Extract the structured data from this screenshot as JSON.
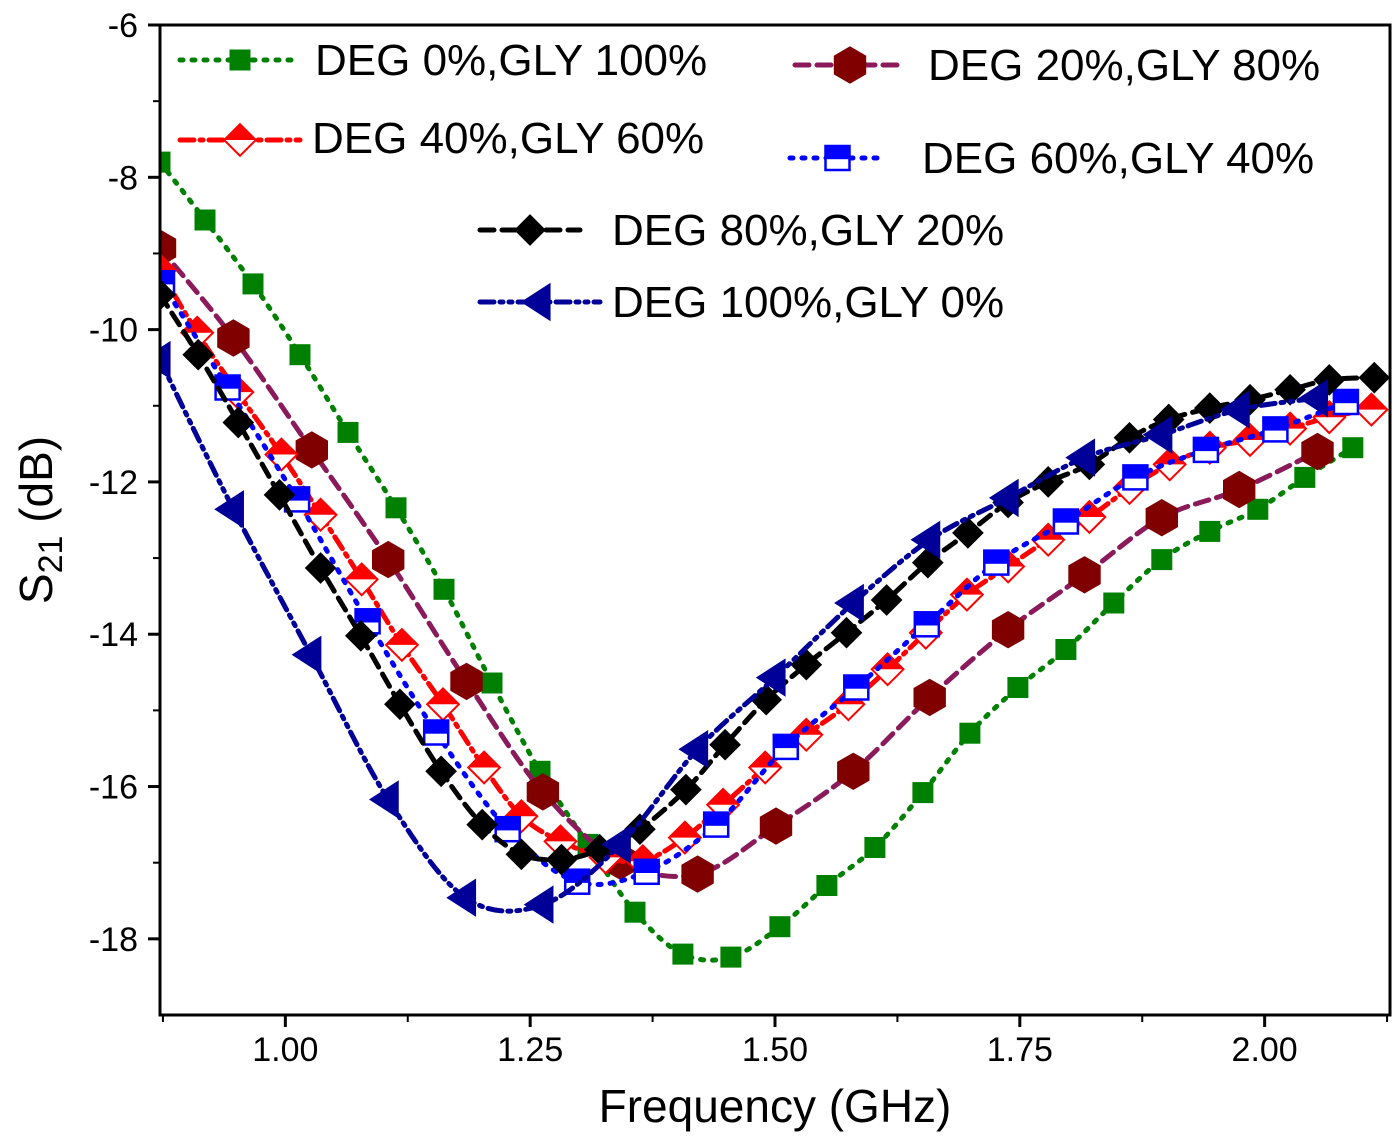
{
  "chart_data": {
    "type": "line",
    "xlabel": "Frequency (GHz)",
    "ylabel_main": "S",
    "ylabel_sub": "21",
    "ylabel_unit": " (dB)",
    "xlim": [
      0.872,
      2.128
    ],
    "ylim": [
      -19,
      -6
    ],
    "xticks": [
      1.0,
      1.25,
      1.5,
      1.75,
      2.0
    ],
    "xtick_labels": [
      "1.00",
      "1.25",
      "1.50",
      "1.75",
      "2.00"
    ],
    "yticks": [
      -6,
      -8,
      -10,
      -12,
      -14,
      -16,
      -18
    ],
    "ytick_labels": [
      "-6",
      "-8",
      "-10",
      "-12",
      "-14",
      "-16",
      "-18"
    ],
    "grid": false,
    "legend_placement": "top",
    "series": [
      {
        "name": "DEG 0%,GLY 100%",
        "color": "#008000",
        "line_color": "#008000",
        "marker": "square",
        "dash": "dot",
        "x": [
          0.872,
          0.918,
          0.967,
          1.015,
          1.064,
          1.113,
          1.162,
          1.211,
          1.26,
          1.309,
          1.357,
          1.406,
          1.455,
          1.505,
          1.553,
          1.602,
          1.651,
          1.699,
          1.748,
          1.797,
          1.846,
          1.895,
          1.944,
          1.993,
          2.041,
          2.09
        ],
        "y": [
          -7.8,
          -8.56,
          -9.4,
          -10.33,
          -11.35,
          -12.34,
          -13.41,
          -14.64,
          -15.8,
          -16.76,
          -17.65,
          -18.2,
          -18.24,
          -17.84,
          -17.3,
          -16.8,
          -16.08,
          -15.3,
          -14.7,
          -14.2,
          -13.59,
          -13.02,
          -12.65,
          -12.36,
          -11.94,
          -11.55
        ]
      },
      {
        "name": "DEG 20%,GLY 80%",
        "color": "#800000",
        "line_color": "#8B1A5A",
        "marker": "hexagon",
        "dash": "dash",
        "x": [
          0.872,
          0.947,
          1.027,
          1.105,
          1.185,
          1.263,
          1.342,
          1.421,
          1.501,
          1.58,
          1.658,
          1.738,
          1.816,
          1.895,
          1.974,
          2.054
        ],
        "y": [
          -8.93,
          -10.11,
          -11.58,
          -13.02,
          -14.62,
          -16.07,
          -16.98,
          -17.15,
          -16.52,
          -15.8,
          -14.83,
          -13.94,
          -13.22,
          -12.47,
          -12.1,
          -11.6
        ]
      },
      {
        "name": "DEG 40%,GLY 60%",
        "color": "#FF0000",
        "line_color": "#FF0000",
        "marker": "half-diamond",
        "dash": "dashdot",
        "x": [
          0.872,
          0.91,
          0.951,
          0.996,
          1.036,
          1.078,
          1.119,
          1.161,
          1.203,
          1.241,
          1.281,
          1.327,
          1.365,
          1.408,
          1.447,
          1.49,
          1.532,
          1.575,
          1.615,
          1.654,
          1.696,
          1.738,
          1.779,
          1.821,
          1.862,
          1.903,
          1.944,
          1.985,
          2.026,
          2.066,
          2.109
        ],
        "y": [
          -9.22,
          -10.04,
          -10.82,
          -11.64,
          -12.43,
          -13.28,
          -14.14,
          -14.92,
          -15.75,
          -16.39,
          -16.72,
          -16.93,
          -16.98,
          -16.67,
          -16.24,
          -15.75,
          -15.32,
          -14.92,
          -14.46,
          -13.98,
          -13.48,
          -13.11,
          -12.76,
          -12.46,
          -12.08,
          -11.77,
          -11.55,
          -11.45,
          -11.3,
          -11.15,
          -11.05
        ]
      },
      {
        "name": "DEG 60%,GLY 40%",
        "color": "#0000FF",
        "line_color": "#0000FF",
        "marker": "half-square",
        "dash": "dot",
        "x": [
          0.874,
          0.941,
          1.012,
          1.084,
          1.154,
          1.227,
          1.298,
          1.369,
          1.44,
          1.511,
          1.583,
          1.655,
          1.726,
          1.797,
          1.868,
          1.94,
          2.011,
          2.083
        ],
        "y": [
          -9.39,
          -10.76,
          -12.23,
          -13.83,
          -15.29,
          -16.56,
          -17.25,
          -17.12,
          -16.5,
          -15.48,
          -14.7,
          -13.87,
          -13.06,
          -12.52,
          -11.94,
          -11.58,
          -11.31,
          -10.95
        ]
      },
      {
        "name": "DEG 80%,GLY 20%",
        "color": "#000000",
        "line_color": "#000000",
        "marker": "diamond",
        "dash": "dash",
        "x": [
          0.872,
          0.911,
          0.952,
          0.994,
          1.036,
          1.077,
          1.117,
          1.159,
          1.201,
          1.241,
          1.282,
          1.321,
          1.362,
          1.409,
          1.449,
          1.491,
          1.532,
          1.573,
          1.614,
          1.656,
          1.697,
          1.738,
          1.779,
          1.821,
          1.862,
          1.902,
          1.944,
          1.985,
          2.026,
          2.066,
          2.112
        ],
        "y": [
          -9.54,
          -10.33,
          -11.22,
          -12.17,
          -13.13,
          -14.02,
          -14.92,
          -15.8,
          -16.5,
          -16.89,
          -16.96,
          -16.83,
          -16.56,
          -16.04,
          -15.45,
          -14.86,
          -14.4,
          -13.98,
          -13.55,
          -13.06,
          -12.67,
          -12.27,
          -12.0,
          -11.77,
          -11.42,
          -11.18,
          -11.03,
          -10.92,
          -10.79,
          -10.66,
          -10.63
        ]
      },
      {
        "name": "DEG 100%,GLY 0%",
        "color": "#000099",
        "line_color": "#000099",
        "marker": "triangle-left",
        "dash": "dashdotdot",
        "x": [
          0.872,
          0.947,
          1.026,
          1.105,
          1.184,
          1.263,
          1.342,
          1.421,
          1.5,
          1.58,
          1.658,
          1.738,
          1.816,
          1.895,
          1.974,
          2.054
        ],
        "y": [
          -10.4,
          -12.36,
          -14.27,
          -16.17,
          -17.46,
          -17.55,
          -16.76,
          -15.51,
          -14.57,
          -13.59,
          -12.76,
          -12.21,
          -11.68,
          -11.38,
          -11.05,
          -10.9
        ]
      }
    ]
  }
}
